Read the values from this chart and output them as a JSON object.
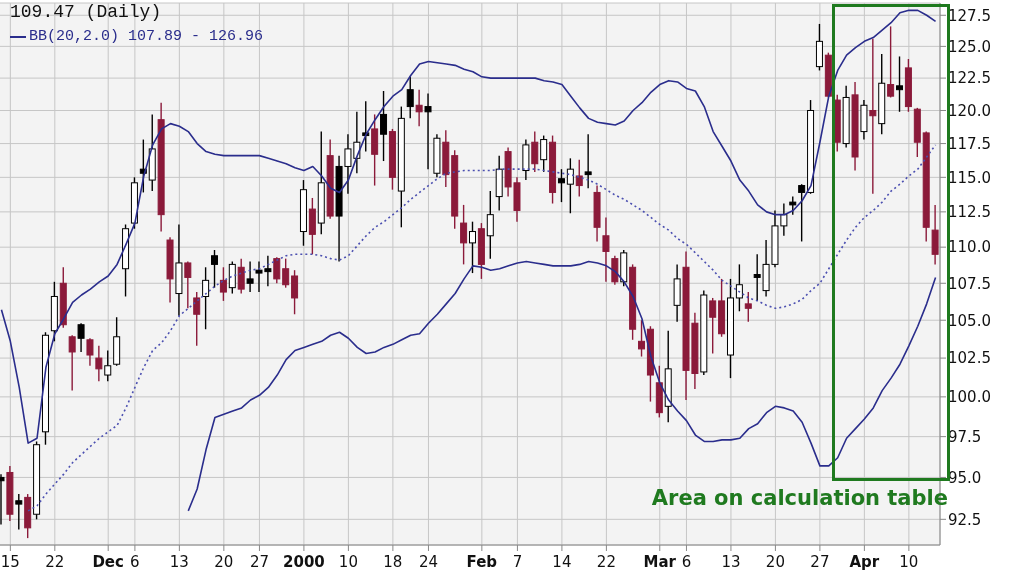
{
  "chart_data": {
    "type": "candlestick",
    "title": "109.47 (Daily)",
    "categories": [
      null,
      "15",
      null,
      null,
      null,
      null,
      "22",
      null,
      null,
      null,
      null,
      null,
      "Dec",
      null,
      null,
      "6",
      null,
      null,
      null,
      null,
      "13",
      null,
      null,
      null,
      null,
      "20",
      null,
      null,
      null,
      "27",
      null,
      null,
      null,
      null,
      "2000",
      null,
      null,
      null,
      null,
      "10",
      null,
      null,
      null,
      null,
      "18",
      null,
      null,
      null,
      "24",
      null,
      null,
      null,
      null,
      null,
      "Feb",
      null,
      null,
      null,
      "7",
      null,
      null,
      null,
      null,
      "14",
      null,
      null,
      null,
      null,
      "22",
      null,
      null,
      null,
      null,
      null,
      "Mar",
      null,
      null,
      "6",
      null,
      null,
      null,
      null,
      "13",
      null,
      null,
      null,
      null,
      "20",
      null,
      null,
      null,
      null,
      "27",
      null,
      null,
      null,
      null,
      "Apr",
      null,
      null,
      null,
      null,
      "10",
      null,
      null,
      null
    ],
    "ohlc": [
      [
        95.0,
        95.2,
        92.2,
        94.8
      ],
      [
        95.3,
        95.7,
        92.4,
        92.8
      ],
      [
        93.6,
        94.0,
        91.9,
        93.4
      ],
      [
        93.8,
        94.0,
        91.4,
        92.0
      ],
      [
        92.8,
        97.2,
        92.5,
        97.0
      ],
      [
        97.8,
        104.2,
        97.0,
        104.0
      ],
      [
        104.3,
        107.6,
        103.6,
        106.6
      ],
      [
        107.5,
        108.6,
        104.5,
        104.7
      ],
      [
        103.9,
        104.0,
        100.4,
        102.9
      ],
      [
        104.7,
        104.8,
        102.9,
        103.8
      ],
      [
        103.7,
        103.8,
        102.0,
        102.7
      ],
      [
        102.5,
        103.3,
        101.0,
        101.8
      ],
      [
        101.4,
        103.0,
        101.0,
        102.0
      ],
      [
        102.1,
        105.2,
        102.0,
        103.9
      ],
      [
        108.5,
        111.6,
        106.6,
        111.3
      ],
      [
        111.7,
        115.0,
        111.3,
        114.6
      ],
      [
        115.6,
        117.8,
        113.9,
        115.3
      ],
      [
        114.8,
        119.7,
        114.0,
        117.1
      ],
      [
        119.3,
        120.6,
        111.1,
        112.3
      ],
      [
        110.5,
        110.7,
        106.2,
        107.8
      ],
      [
        106.8,
        111.6,
        105.3,
        108.9
      ],
      [
        108.9,
        109.0,
        105.8,
        107.9
      ],
      [
        106.5,
        106.9,
        103.3,
        105.4
      ],
      [
        106.6,
        108.6,
        104.4,
        107.7
      ],
      [
        109.4,
        109.8,
        107.2,
        108.8
      ],
      [
        107.7,
        108.6,
        106.3,
        106.9
      ],
      [
        107.2,
        109.0,
        106.8,
        108.8
      ],
      [
        108.6,
        109.2,
        106.8,
        107.1
      ],
      [
        107.8,
        109.0,
        106.9,
        107.5
      ],
      [
        108.4,
        109.0,
        106.9,
        108.2
      ],
      [
        108.5,
        109.4,
        107.3,
        108.3
      ],
      [
        109.2,
        109.3,
        107.5,
        107.8
      ],
      [
        108.5,
        109.2,
        107.2,
        107.4
      ],
      [
        108.0,
        108.4,
        105.4,
        106.5
      ],
      [
        111.1,
        114.8,
        110.1,
        114.1
      ],
      [
        112.7,
        113.5,
        109.5,
        110.9
      ],
      [
        111.7,
        118.4,
        110.9,
        114.6
      ],
      [
        116.6,
        117.8,
        112.0,
        112.2
      ],
      [
        115.8,
        116.6,
        109.0,
        112.2
      ],
      [
        115.8,
        118.2,
        113.8,
        117.1
      ],
      [
        116.4,
        119.9,
        115.3,
        117.6
      ],
      [
        118.3,
        120.7,
        116.9,
        118.1
      ],
      [
        118.6,
        119.7,
        114.4,
        116.7
      ],
      [
        119.7,
        121.5,
        116.2,
        118.2
      ],
      [
        118.4,
        118.6,
        114.1,
        115.0
      ],
      [
        114.0,
        120.3,
        111.4,
        119.4
      ],
      [
        121.6,
        122.6,
        119.4,
        120.3
      ],
      [
        120.4,
        121.6,
        118.8,
        119.9
      ],
      [
        120.3,
        121.3,
        115.6,
        119.9
      ],
      [
        115.3,
        118.2,
        115.0,
        117.9
      ],
      [
        117.6,
        118.5,
        114.3,
        115.2
      ],
      [
        116.6,
        117.0,
        111.3,
        112.2
      ],
      [
        111.7,
        113.0,
        108.8,
        110.3
      ],
      [
        110.3,
        111.8,
        108.2,
        111.1
      ],
      [
        111.3,
        111.7,
        107.8,
        108.8
      ],
      [
        110.8,
        114.0,
        109.2,
        112.3
      ],
      [
        113.6,
        116.6,
        112.6,
        115.6
      ],
      [
        116.9,
        117.2,
        113.6,
        114.3
      ],
      [
        114.6,
        115.0,
        111.8,
        112.6
      ],
      [
        115.5,
        117.8,
        114.8,
        117.4
      ],
      [
        117.6,
        118.4,
        115.4,
        116.0
      ],
      [
        116.3,
        118.1,
        115.4,
        117.8
      ],
      [
        117.6,
        118.1,
        113.1,
        113.9
      ],
      [
        114.9,
        115.6,
        113.2,
        114.6
      ],
      [
        114.5,
        116.4,
        112.4,
        115.6
      ],
      [
        115.1,
        116.3,
        113.6,
        114.4
      ],
      [
        115.4,
        118.2,
        114.2,
        115.2
      ],
      [
        113.9,
        114.4,
        110.4,
        111.4
      ],
      [
        110.8,
        112.1,
        107.6,
        109.7
      ],
      [
        109.2,
        109.4,
        107.4,
        107.6
      ],
      [
        107.6,
        109.8,
        107.3,
        109.6
      ],
      [
        108.6,
        108.8,
        103.7,
        104.4
      ],
      [
        103.6,
        105.0,
        102.6,
        103.1
      ],
      [
        104.4,
        104.6,
        99.7,
        101.4
      ],
      [
        100.9,
        102.0,
        98.7,
        99.0
      ],
      [
        99.4,
        104.3,
        98.4,
        101.8
      ],
      [
        106.0,
        108.8,
        104.9,
        107.8
      ],
      [
        108.6,
        109.7,
        99.8,
        101.7
      ],
      [
        104.8,
        105.5,
        100.5,
        101.5
      ],
      [
        101.6,
        107.0,
        101.4,
        106.7
      ],
      [
        106.3,
        106.5,
        102.8,
        105.2
      ],
      [
        106.3,
        107.8,
        103.9,
        104.1
      ],
      [
        102.7,
        107.8,
        101.2,
        106.5
      ],
      [
        106.5,
        108.8,
        105.6,
        107.4
      ],
      [
        106.1,
        106.9,
        104.9,
        105.8
      ],
      [
        108.1,
        109.5,
        106.3,
        107.9
      ],
      [
        107.0,
        110.5,
        106.6,
        108.8
      ],
      [
        108.8,
        112.6,
        108.6,
        111.5
      ],
      [
        111.5,
        113.1,
        110.8,
        112.3
      ],
      [
        113.2,
        113.6,
        112.3,
        113.0
      ],
      [
        114.4,
        114.5,
        110.4,
        113.9
      ],
      [
        113.9,
        120.8,
        113.8,
        120.0
      ],
      [
        123.4,
        126.8,
        123.1,
        125.4
      ],
      [
        124.3,
        124.5,
        121.0,
        121.1
      ],
      [
        120.8,
        121.2,
        116.9,
        117.6
      ],
      [
        117.5,
        121.9,
        117.2,
        121.0
      ],
      [
        121.2,
        122.2,
        115.5,
        116.5
      ],
      [
        118.4,
        120.8,
        117.8,
        120.4
      ],
      [
        120.0,
        125.6,
        113.8,
        119.6
      ],
      [
        119.0,
        124.4,
        118.2,
        122.1
      ],
      [
        122.0,
        126.6,
        121.0,
        121.1
      ],
      [
        121.9,
        124.2,
        119.9,
        121.6
      ],
      [
        123.3,
        124.0,
        119.9,
        120.3
      ],
      [
        120.1,
        120.2,
        116.5,
        117.6
      ],
      [
        118.3,
        118.4,
        110.4,
        111.4
      ],
      [
        111.2,
        113.0,
        108.8,
        109.5
      ]
    ],
    "colors": [
      "#000000",
      "#8b1a3a",
      "#000000",
      "#8b1a3a",
      "#ffffff",
      "#ffffff",
      "#ffffff",
      "#8b1a3a",
      "#8b1a3a",
      "#000000",
      "#8b1a3a",
      "#8b1a3a",
      "#ffffff",
      "#ffffff",
      "#ffffff",
      "#ffffff",
      "#000000",
      "#ffffff",
      "#8b1a3a",
      "#8b1a3a",
      "#ffffff",
      "#8b1a3a",
      "#8b1a3a",
      "#ffffff",
      "#000000",
      "#8b1a3a",
      "#ffffff",
      "#8b1a3a",
      "#000000",
      "#000000",
      "#000000",
      "#8b1a3a",
      "#8b1a3a",
      "#8b1a3a",
      "#ffffff",
      "#8b1a3a",
      "#ffffff",
      "#8b1a3a",
      "#000000",
      "#ffffff",
      "#ffffff",
      "#000000",
      "#8b1a3a",
      "#000000",
      "#8b1a3a",
      "#ffffff",
      "#000000",
      "#8b1a3a",
      "#000000",
      "#ffffff",
      "#8b1a3a",
      "#8b1a3a",
      "#8b1a3a",
      "#ffffff",
      "#8b1a3a",
      "#ffffff",
      "#ffffff",
      "#8b1a3a",
      "#8b1a3a",
      "#ffffff",
      "#8b1a3a",
      "#ffffff",
      "#8b1a3a",
      "#000000",
      "#ffffff",
      "#8b1a3a",
      "#000000",
      "#8b1a3a",
      "#8b1a3a",
      "#8b1a3a",
      "#ffffff",
      "#8b1a3a",
      "#8b1a3a",
      "#8b1a3a",
      "#8b1a3a",
      "#ffffff",
      "#ffffff",
      "#8b1a3a",
      "#8b1a3a",
      "#ffffff",
      "#8b1a3a",
      "#8b1a3a",
      "#ffffff",
      "#ffffff",
      "#8b1a3a",
      "#000000",
      "#ffffff",
      "#ffffff",
      "#ffffff",
      "#000000",
      "#000000",
      "#ffffff",
      "#ffffff",
      "#8b1a3a",
      "#8b1a3a",
      "#ffffff",
      "#8b1a3a",
      "#ffffff",
      "#8b1a3a",
      "#ffffff",
      "#8b1a3a",
      "#000000",
      "#8b1a3a",
      "#8b1a3a",
      "#8b1a3a",
      "#8b1a3a"
    ],
    "series": [
      {
        "name": "BB(20,2.0) 107.89 - 126.96",
        "type": "line",
        "color": "#2a2d8c",
        "values": [
          105.7,
          103.6,
          100.6,
          97.1,
          97.4,
          101.9,
          104.1,
          105.1,
          106.2,
          106.7,
          107.1,
          107.6,
          108.0,
          108.8,
          110.2,
          111.7,
          115.1,
          117.4,
          118.6,
          119,
          118.8,
          118.4,
          117.5,
          116.9,
          116.7,
          116.6,
          116.6,
          116.6,
          116.6,
          116.6,
          116.4,
          116.2,
          116,
          115.7,
          115.5,
          115.8,
          115.1,
          114.2,
          113.9,
          114.8,
          116.6,
          118.2,
          119.3,
          120.3,
          121.1,
          121.6,
          122.7,
          123.6,
          123.8,
          123.7,
          123.6,
          123.5,
          123.2,
          123,
          122.6,
          122.5,
          122.5,
          122.5,
          122.5,
          122.5,
          122.5,
          122.3,
          122.2,
          122,
          121.1,
          120.2,
          119.4,
          119.1,
          119,
          118.9,
          119.2,
          120,
          120.6,
          121.4,
          122,
          122.3,
          122.2,
          121.7,
          121.5,
          120.3,
          118.4,
          117.3,
          116.2,
          114.8,
          114,
          113,
          112.5,
          112.3,
          112.3,
          112.6,
          113.3,
          114.4,
          117.6,
          121.1,
          123.1,
          124.3,
          124.9,
          125.4,
          125.7,
          126.3,
          126.9,
          127.7,
          127.9,
          127.9,
          127.5,
          127.0
        ]
      },
      {
        "type": "line",
        "color": "#4b4fb0",
        "line_style": "dotted",
        "values": [
          null,
          null,
          null,
          93.0,
          93.3,
          94.0,
          94.6,
          95.2,
          95.9,
          96.4,
          96.9,
          97.4,
          97.8,
          98.2,
          99.3,
          100.6,
          101.9,
          103,
          103.5,
          104.3,
          105.3,
          105.8,
          106.3,
          106.8,
          107.3,
          107.7,
          108,
          108.2,
          108.4,
          108.5,
          108.8,
          109.1,
          109.4,
          109.5,
          109.5,
          109.5,
          109.4,
          109.2,
          109.1,
          109.4,
          110.1,
          110.8,
          111.4,
          111.8,
          112.3,
          112.8,
          113.4,
          113.9,
          114.4,
          114.9,
          115.3,
          115.4,
          115.5,
          115.5,
          115.5,
          115.5,
          115.6,
          115.6,
          115.6,
          115.6,
          115.6,
          115.5,
          115.4,
          115.3,
          115.2,
          115.0,
          114.8,
          114.5,
          114.1,
          113.7,
          113.4,
          113.0,
          112.6,
          112.1,
          111.6,
          111.2,
          110.6,
          110.2,
          109.6,
          109.0,
          108.4,
          107.7,
          107.3,
          106.9,
          106.5,
          106.3,
          106.0,
          105.8,
          105.9,
          106.1,
          106.4,
          107.0,
          107.5,
          108.5,
          109.5,
          110.5,
          111.4,
          112.1,
          112.6,
          113.2,
          114.0,
          114.5,
          115.1,
          115.6,
          116.5,
          117.4
        ]
      },
      {
        "type": "line",
        "color": "#2a2d8c",
        "values": [
          null,
          null,
          null,
          null,
          null,
          null,
          null,
          null,
          null,
          null,
          null,
          null,
          null,
          null,
          null,
          null,
          null,
          null,
          null,
          null,
          null,
          93.0,
          94.3,
          96.7,
          98.7,
          98.9,
          99.1,
          99.3,
          99.8,
          100.1,
          100.6,
          101.4,
          102.4,
          103.0,
          103.2,
          103.4,
          103.6,
          104.0,
          104.2,
          103.8,
          103.2,
          102.8,
          102.9,
          103.2,
          103.4,
          103.7,
          104.0,
          104.1,
          104.8,
          105.4,
          106.1,
          106.8,
          107.8,
          108.7,
          108.6,
          108.4,
          108.5,
          108.7,
          108.9,
          109.0,
          108.9,
          108.8,
          108.7,
          108.7,
          108.7,
          108.8,
          109.0,
          108.9,
          108.7,
          108.3,
          107.6,
          106.6,
          105.1,
          102.6,
          100.9,
          99.8,
          99.1,
          98.5,
          97.6,
          97.2,
          97.2,
          97.3,
          97.3,
          97.4,
          98.0,
          98.3,
          99.0,
          99.4,
          99.3,
          99.1,
          98.4,
          97.1,
          95.7,
          95.7,
          96.2,
          97.4,
          98.0,
          98.6,
          99.3,
          100.4,
          101.2,
          102.1,
          103.3,
          104.6,
          106.1,
          107.9
        ]
      }
    ],
    "ylim": [
      91,
      128.5
    ],
    "yticks": [
      92.5,
      {
        "value": 95,
        "label": "95.0"
      },
      97.5,
      {
        "value": 100,
        "label": "100.0"
      },
      102.5,
      {
        "value": 105,
        "label": "105.0"
      },
      107.5,
      {
        "value": 110,
        "label": "110.0"
      },
      112.5,
      {
        "value": 115,
        "label": "115.0"
      },
      117.5,
      {
        "value": 120,
        "label": "120.0"
      },
      122.5,
      {
        "value": 125,
        "label": "125.0"
      },
      127.5
    ],
    "log": true,
    "grid": true,
    "legend": "top left",
    "marker": "none",
    "annotations": [
      "Area on calculation table"
    ]
  }
}
